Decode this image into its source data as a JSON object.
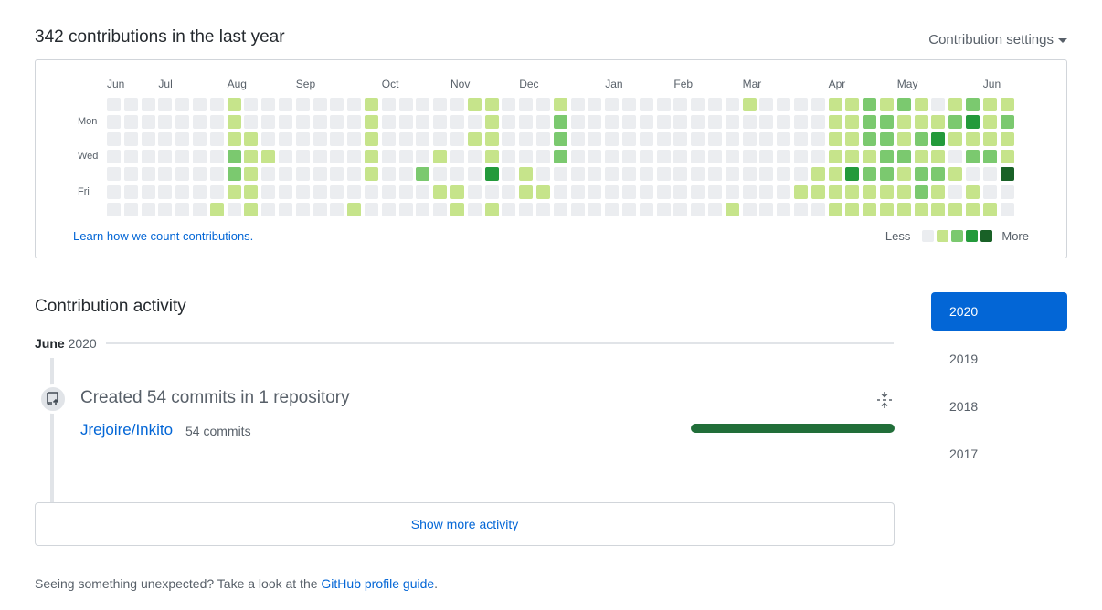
{
  "header": {
    "title": "342 contributions in the last year",
    "settings_label": "Contribution settings"
  },
  "graph": {
    "months": [
      {
        "label": "Jun",
        "week": 0
      },
      {
        "label": "Jul",
        "week": 3
      },
      {
        "label": "Aug",
        "week": 7
      },
      {
        "label": "Sep",
        "week": 11
      },
      {
        "label": "Oct",
        "week": 16
      },
      {
        "label": "Nov",
        "week": 20
      },
      {
        "label": "Dec",
        "week": 24
      },
      {
        "label": "Jan",
        "week": 29
      },
      {
        "label": "Feb",
        "week": 33
      },
      {
        "label": "Mar",
        "week": 37
      },
      {
        "label": "Apr",
        "week": 42
      },
      {
        "label": "May",
        "week": 46
      },
      {
        "label": "Jun",
        "week": 51
      }
    ],
    "day_labels": [
      {
        "label": "Mon",
        "day": 1
      },
      {
        "label": "Wed",
        "day": 3
      },
      {
        "label": "Fri",
        "day": 5
      }
    ],
    "level_colors": [
      "#ebedf0",
      "#c6e48b",
      "#7bc96f",
      "#239a3b",
      "#196127"
    ],
    "weeks": [
      "0000000",
      "0000000",
      "0000000",
      "0000000",
      "0000000",
      "0000000",
      "0000001",
      "1112210",
      "0011111",
      "0001000",
      "0000000",
      "0000000",
      "0000000",
      "0000000",
      "0000001",
      "1111100",
      "0000000",
      "0000000",
      "0000200",
      "0001010",
      "0000011",
      "1010000",
      "1111301",
      "0000000",
      "0000110",
      "0000010",
      "1222000",
      "0000000",
      "0000000",
      "0000000",
      "0000000",
      "0000000",
      "0000000",
      "0000000",
      "0000000",
      "0000000",
      "0000001",
      "1000000",
      "0000000",
      "0000000",
      "0000010",
      "0000110",
      "1111111",
      "1111311",
      "2221211",
      "1222211",
      "2112111",
      "1121221",
      "0131211",
      "1210101",
      "2312011",
      "1112001",
      "1211400"
    ],
    "learn_link": "Learn how we count contributions.",
    "legend_less": "Less",
    "legend_more": "More"
  },
  "activity": {
    "title": "Contribution activity",
    "month_label": "June",
    "year_label": "2020",
    "item_title": "Created 54 commits in 1 repository",
    "repo_name": "Jrejoire/Inkito",
    "repo_commits": "54 commits",
    "commit_share": 1.0,
    "show_more": "Show more activity"
  },
  "years": [
    {
      "label": "2020",
      "active": true
    },
    {
      "label": "2019",
      "active": false
    },
    {
      "label": "2018",
      "active": false
    },
    {
      "label": "2017",
      "active": false
    }
  ],
  "footer": {
    "text": "Seeing something unexpected? Take a look at the ",
    "link": "GitHub profile guide",
    "end": "."
  },
  "icons": {
    "timeline": "repo-push-icon",
    "fold": "fold-icon",
    "caret": "caret-down-icon"
  }
}
